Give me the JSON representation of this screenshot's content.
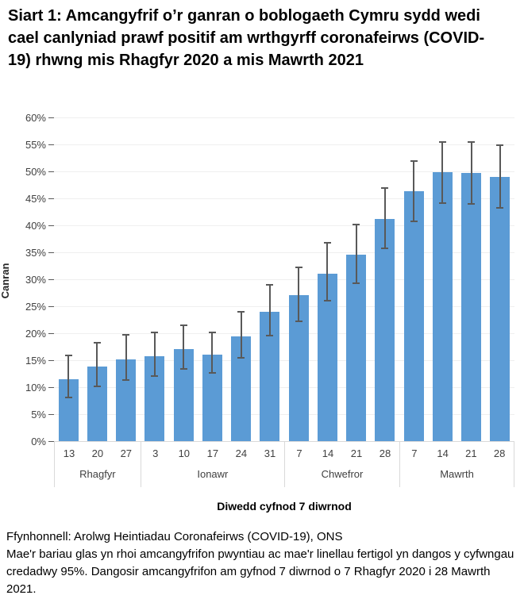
{
  "title": "Siart 1: Amcangyfrif o’r ganran o boblogaeth Cymru sydd wedi cael canlyniad prawf positif am wrthgyrff coronafeirws (COVID-19) rhwng mis Rhagfyr 2020 a mis Mawrth 2021",
  "chart_data": {
    "type": "bar",
    "title": "Siart 1: Amcangyfrif o’r ganran o boblogaeth Cymru sydd wedi cael canlyniad prawf positif am wrthgyrff coronafeirws (COVID-19) rhwng mis Rhagfyr 2020 a mis Mawrth 2021",
    "ylabel": "Canran",
    "xlabel": "Diwedd cyfnod 7 diwrnod",
    "ylim": [
      0,
      60
    ],
    "ytick_step": 5,
    "ytick_suffix": "%",
    "grid": true,
    "legend": "none",
    "bar_color": "#5b9bd5",
    "error_bar_color": "#595959",
    "error_bars_are": "cyfwngau credadwy 95%",
    "groups": [
      {
        "month": "Rhagfyr",
        "points": [
          {
            "label": "13",
            "value": 11.4,
            "ci_low": 8.1,
            "ci_high": 15.9
          },
          {
            "label": "20",
            "value": 13.8,
            "ci_low": 10.1,
            "ci_high": 18.3
          },
          {
            "label": "27",
            "value": 15.1,
            "ci_low": 11.3,
            "ci_high": 19.7
          }
        ]
      },
      {
        "month": "Ionawr",
        "points": [
          {
            "label": "3",
            "value": 15.8,
            "ci_low": 12.1,
            "ci_high": 20.1
          },
          {
            "label": "10",
            "value": 17.0,
            "ci_low": 13.4,
            "ci_high": 21.5
          },
          {
            "label": "17",
            "value": 16.1,
            "ci_low": 12.7,
            "ci_high": 20.1
          },
          {
            "label": "24",
            "value": 19.4,
            "ci_low": 15.5,
            "ci_high": 23.9
          },
          {
            "label": "31",
            "value": 24.0,
            "ci_low": 19.5,
            "ci_high": 28.9
          }
        ]
      },
      {
        "month": "Chwefror",
        "points": [
          {
            "label": "7",
            "value": 27.0,
            "ci_low": 22.2,
            "ci_high": 32.2
          },
          {
            "label": "14",
            "value": 31.1,
            "ci_low": 26.1,
            "ci_high": 36.7
          },
          {
            "label": "21",
            "value": 34.6,
            "ci_low": 29.3,
            "ci_high": 40.2
          },
          {
            "label": "28",
            "value": 41.2,
            "ci_low": 35.7,
            "ci_high": 46.9
          }
        ]
      },
      {
        "month": "Mawrth",
        "points": [
          {
            "label": "7",
            "value": 46.3,
            "ci_low": 40.8,
            "ci_high": 51.9
          },
          {
            "label": "14",
            "value": 49.8,
            "ci_low": 44.1,
            "ci_high": 55.5
          },
          {
            "label": "21",
            "value": 49.7,
            "ci_low": 43.9,
            "ci_high": 55.4
          },
          {
            "label": "28",
            "value": 49.0,
            "ci_low": 43.3,
            "ci_high": 54.8
          }
        ]
      }
    ]
  },
  "footer": {
    "source": "Ffynhonnell: Arolwg Heintiadau Coronafeirws (COVID-19), ONS",
    "note": "Mae'r bariau glas yn rhoi amcangyfrifon pwyntiau ac mae'r linellau fertigol yn dangos y cyfwngau credadwy 95%. Dangosir amcangyfrifon am gyfnod 7 diwrnod o 7 Rhagfyr 2020 i 28 Mawrth 2021."
  }
}
